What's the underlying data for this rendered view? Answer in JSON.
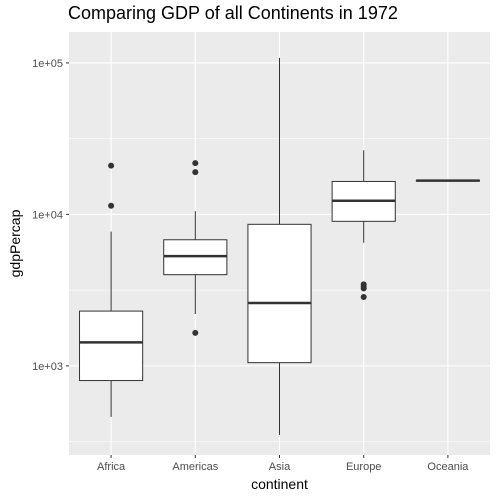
{
  "chart_data": {
    "type": "boxplot",
    "title": "Comparing GDP of all Continents in 1972",
    "xlabel": "continent",
    "ylabel": "gdpPercap",
    "yscale": "log10",
    "ylim": [
      258,
      160000
    ],
    "yticks": [
      1000,
      10000,
      100000
    ],
    "ytick_labels": [
      "1e+03",
      "1e+04",
      "1e+05"
    ],
    "categories": [
      "Africa",
      "Americas",
      "Asia",
      "Europe",
      "Oceania"
    ],
    "boxes": [
      {
        "category": "Africa",
        "whisker_low": 460,
        "q1": 800,
        "median": 1430,
        "q3": 2300,
        "whisker_high": 7700,
        "outliers": [
          11400,
          21000
        ]
      },
      {
        "category": "Americas",
        "whisker_low": 2200,
        "q1": 4000,
        "median": 5300,
        "q3": 6800,
        "whisker_high": 10500,
        "outliers": [
          1650,
          19000,
          21800
        ]
      },
      {
        "category": "Asia",
        "whisker_low": 350,
        "q1": 1050,
        "median": 2600,
        "q3": 8600,
        "whisker_high": 108000,
        "outliers": []
      },
      {
        "category": "Europe",
        "whisker_low": 6500,
        "q1": 9000,
        "median": 12300,
        "q3": 16500,
        "whisker_high": 26500,
        "outliers": [
          2850,
          3250,
          3350,
          3450
        ]
      },
      {
        "category": "Oceania",
        "whisker_low": 16500,
        "q1": 16600,
        "median": 16700,
        "q3": 16800,
        "whisker_high": 16900,
        "outliers": []
      }
    ],
    "grid": true,
    "colors": {
      "panel": "#ebebeb",
      "grid_major": "#ffffff",
      "box_line": "#333333",
      "box_fill": "#ffffff"
    }
  }
}
